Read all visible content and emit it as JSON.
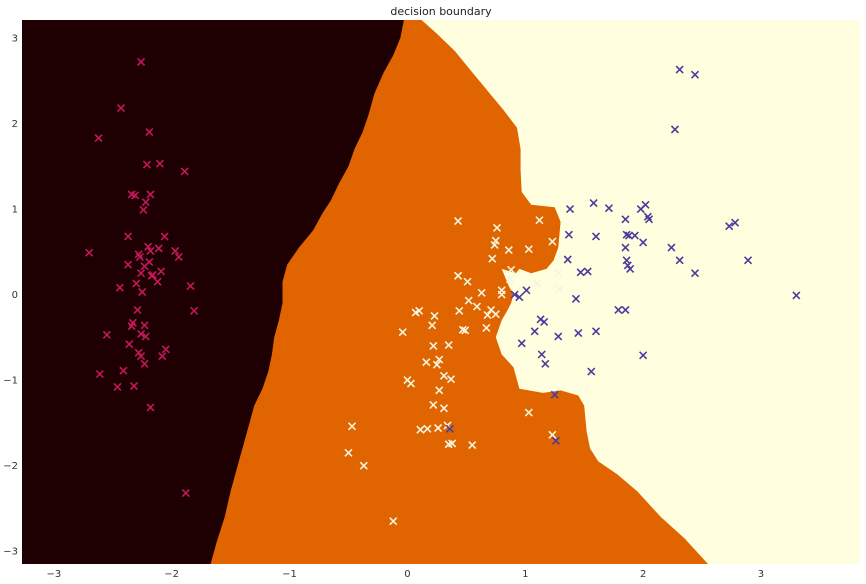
{
  "chart_data": {
    "type": "scatter",
    "title": "decision boundary",
    "xlabel": "",
    "ylabel": "",
    "xlim": [
      -3.27,
      3.84
    ],
    "ylim": [
      -3.15,
      3.21
    ],
    "xticks": [
      -3,
      -2,
      -1,
      0,
      1,
      2,
      3
    ],
    "yticks": [
      -3,
      -2,
      -1,
      0,
      1,
      2,
      3
    ],
    "xtick_labels": [
      "−3",
      "−2",
      "−1",
      "0",
      "1",
      "2",
      "3"
    ],
    "ytick_labels": [
      "−3",
      "−2",
      "−1",
      "0",
      "1",
      "2",
      "3"
    ],
    "grid": false,
    "legend": "none",
    "marker": "x",
    "regions": {
      "class_0_color": "#1e0003",
      "class_1_color": "#e06400",
      "class_2_color": "#ffffe0",
      "boundary_0_1": [
        [
          -0.03,
          3.21
        ],
        [
          -0.06,
          3.0
        ],
        [
          -0.12,
          2.8
        ],
        [
          -0.2,
          2.6
        ],
        [
          -0.28,
          2.35
        ],
        [
          -0.33,
          2.1
        ],
        [
          -0.38,
          1.9
        ],
        [
          -0.45,
          1.7
        ],
        [
          -0.5,
          1.5
        ],
        [
          -0.58,
          1.3
        ],
        [
          -0.65,
          1.1
        ],
        [
          -0.72,
          0.95
        ],
        [
          -0.8,
          0.75
        ],
        [
          -0.92,
          0.55
        ],
        [
          -1.02,
          0.35
        ],
        [
          -1.06,
          0.15
        ],
        [
          -1.06,
          -0.1
        ],
        [
          -1.09,
          -0.3
        ],
        [
          -1.13,
          -0.5
        ],
        [
          -1.15,
          -0.7
        ],
        [
          -1.18,
          -0.9
        ],
        [
          -1.23,
          -1.1
        ],
        [
          -1.3,
          -1.3
        ],
        [
          -1.34,
          -1.5
        ],
        [
          -1.38,
          -1.7
        ],
        [
          -1.42,
          -1.9
        ],
        [
          -1.46,
          -2.1
        ],
        [
          -1.5,
          -2.3
        ],
        [
          -1.55,
          -2.6
        ],
        [
          -1.62,
          -2.9
        ],
        [
          -1.67,
          -3.15
        ]
      ],
      "boundary_1_2": [
        [
          0.12,
          3.21
        ],
        [
          0.25,
          3.05
        ],
        [
          0.4,
          2.85
        ],
        [
          0.55,
          2.6
        ],
        [
          0.7,
          2.35
        ],
        [
          0.82,
          2.15
        ],
        [
          0.93,
          1.95
        ],
        [
          0.96,
          1.7
        ],
        [
          0.96,
          1.45
        ],
        [
          0.97,
          1.2
        ],
        [
          1.05,
          1.05
        ],
        [
          1.25,
          1.02
        ],
        [
          1.3,
          0.85
        ],
        [
          1.28,
          0.55
        ],
        [
          1.24,
          0.4
        ],
        [
          1.18,
          0.3
        ],
        [
          1.05,
          0.25
        ],
        [
          0.95,
          0.3
        ],
        [
          0.92,
          0.25
        ],
        [
          0.8,
          0.3
        ],
        [
          0.86,
          0.1
        ],
        [
          0.9,
          0.0
        ],
        [
          0.88,
          -0.1
        ],
        [
          0.85,
          -0.18
        ],
        [
          0.8,
          -0.3
        ],
        [
          0.75,
          -0.5
        ],
        [
          0.8,
          -0.7
        ],
        [
          0.9,
          -0.85
        ],
        [
          0.95,
          -1.1
        ],
        [
          1.15,
          -1.15
        ],
        [
          1.3,
          -1.12
        ],
        [
          1.45,
          -1.18
        ],
        [
          1.5,
          -1.3
        ],
        [
          1.52,
          -1.6
        ],
        [
          1.55,
          -1.8
        ],
        [
          1.62,
          -1.95
        ],
        [
          1.78,
          -2.1
        ],
        [
          1.95,
          -2.3
        ],
        [
          2.15,
          -2.6
        ],
        [
          2.35,
          -2.85
        ],
        [
          2.55,
          -3.15
        ]
      ]
    },
    "series": [
      {
        "color": "#c2185b",
        "x": [
          -2.26,
          -2.43,
          -2.19,
          -2.62,
          -2.21,
          -2.1,
          -1.89,
          -2.31,
          -2.34,
          -2.22,
          -2.18,
          -2.24,
          -2.7,
          -2.37,
          -2.06,
          -2.11,
          -1.97,
          -2.18,
          -2.2,
          -2.28,
          -2.37,
          -1.94,
          -2.27,
          -2.23,
          -2.19,
          -2.09,
          -2.17,
          -2.12,
          -1.84,
          -2.3,
          -2.26,
          -2.16,
          -2.25,
          -2.44,
          -2.33,
          -1.81,
          -2.23,
          -2.34,
          -2.26,
          -2.22,
          -2.55,
          -2.36,
          -2.28,
          -2.26,
          -2.05,
          -2.08,
          -2.29,
          -2.23,
          -2.61,
          -2.41,
          -2.46,
          -2.32,
          -1.88,
          -2.18
        ],
        "y": [
          2.72,
          2.18,
          1.9,
          1.83,
          1.52,
          1.53,
          1.44,
          1.16,
          1.17,
          1.08,
          1.17,
          0.99,
          0.49,
          0.68,
          0.68,
          0.54,
          0.51,
          0.51,
          0.56,
          0.47,
          0.35,
          0.44,
          0.44,
          0.33,
          0.38,
          0.27,
          0.22,
          0.15,
          0.1,
          0.13,
          0.25,
          0.23,
          0.03,
          0.08,
          -0.33,
          -0.19,
          -0.36,
          -0.37,
          -0.46,
          -0.49,
          -0.47,
          -0.58,
          -0.68,
          -0.72,
          -0.64,
          -0.72,
          -0.18,
          -0.81,
          -0.93,
          -0.89,
          -1.08,
          -1.07,
          -2.32,
          -1.32
        ]
      },
      {
        "color": "#f5f5dc",
        "x": [
          0.43,
          0.76,
          0.75,
          1.03,
          1.12,
          0.86,
          1.23,
          0.72,
          0.74,
          0.88,
          0.43,
          0.63,
          0.52,
          0.59,
          0.68,
          0.44,
          0.71,
          0.47,
          0.75,
          0.07,
          0.1,
          0.23,
          0.21,
          0.35,
          0.22,
          0.49,
          0.67,
          -0.04,
          0.27,
          0.25,
          0.37,
          0.27,
          0.16,
          0.31,
          0.34,
          0.31,
          0.22,
          0.03,
          0.0,
          0.17,
          0.11,
          0.26,
          0.35,
          0.38,
          0.55,
          -0.47,
          -0.5,
          -0.37,
          -0.12,
          1.23,
          1.03,
          0.87,
          1.28,
          0.51,
          0.8,
          1.29,
          1.1,
          0.8
        ],
        "y": [
          0.86,
          0.78,
          0.63,
          0.53,
          0.87,
          0.52,
          0.62,
          0.42,
          0.58,
          0.29,
          0.22,
          0.02,
          -0.07,
          -0.14,
          -0.24,
          -0.19,
          -0.18,
          -0.41,
          -0.23,
          -0.21,
          -0.19,
          -0.25,
          -0.36,
          -0.59,
          -0.6,
          -0.42,
          -0.39,
          -0.44,
          -0.76,
          -0.82,
          -0.99,
          -1.12,
          -0.79,
          -0.95,
          -1.53,
          -1.33,
          -1.29,
          -1.04,
          -1.0,
          -1.57,
          -1.58,
          -1.56,
          -1.75,
          -1.74,
          -1.76,
          -1.54,
          -1.85,
          -2.0,
          -2.65,
          -1.64,
          -1.38,
          0.18,
          0.25,
          0.15,
          0.05,
          0.06,
          0.13,
          0.0
        ]
      },
      {
        "color": "#4b3c9c",
        "x": [
          2.31,
          2.44,
          2.27,
          1.58,
          1.71,
          1.38,
          1.85,
          1.98,
          2.02,
          2.04,
          2.05,
          1.86,
          1.88,
          1.37,
          1.93,
          1.6,
          2.0,
          2.24,
          2.78,
          2.73,
          1.36,
          1.47,
          1.53,
          1.86,
          1.87,
          2.31,
          2.44,
          2.89,
          1.85,
          1.89,
          1.43,
          3.3,
          0.91,
          0.95,
          1.01,
          1.13,
          1.16,
          1.79,
          1.85,
          1.08,
          1.28,
          1.45,
          1.6,
          1.14,
          0.97,
          1.17,
          2.0,
          1.56,
          1.25,
          0.36,
          1.26
        ],
        "y": [
          2.63,
          2.57,
          1.93,
          1.07,
          1.01,
          1.0,
          0.88,
          1.0,
          1.05,
          0.91,
          0.88,
          0.7,
          0.69,
          0.7,
          0.69,
          0.68,
          0.61,
          0.55,
          0.84,
          0.8,
          0.41,
          0.26,
          0.27,
          0.4,
          0.34,
          0.4,
          0.25,
          0.4,
          0.55,
          0.3,
          -0.05,
          -0.01,
          0.0,
          -0.03,
          0.05,
          -0.29,
          -0.32,
          -0.18,
          -0.18,
          -0.43,
          -0.49,
          -0.45,
          -0.43,
          -0.7,
          -0.57,
          -0.81,
          -0.71,
          -0.9,
          -1.17,
          -1.57,
          -1.71
        ]
      }
    ]
  }
}
